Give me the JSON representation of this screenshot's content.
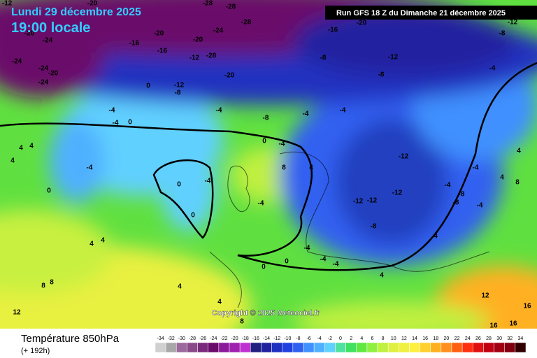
{
  "header": {
    "date": "Lundi 29 décembre 2025",
    "time": "19:00 locale",
    "run": "Run GFS 18 Z du Dimanche 21 décembre 2025"
  },
  "copyright": "Copyright © 2025 Meteociel.fr",
  "footer": {
    "title": "Température 850hPa",
    "lead": "(+ 192h)"
  },
  "colorbar": {
    "labels": [
      -34,
      -32,
      -30,
      -28,
      -26,
      -24,
      -22,
      -20,
      -18,
      -16,
      -14,
      -12,
      -10,
      -8,
      -6,
      -4,
      -2,
      0,
      2,
      4,
      6,
      8,
      10,
      12,
      14,
      16,
      18,
      20,
      22,
      24,
      26,
      28,
      30,
      32,
      34
    ],
    "colors": [
      "#d0d0d0",
      "#a8a8a8",
      "#9a6a9a",
      "#8a4a8a",
      "#7a2a7a",
      "#6a0a6a",
      "#8a1a9a",
      "#a020b0",
      "#c030d0",
      "#202080",
      "#2020a0",
      "#2030c0",
      "#2040e0",
      "#3060f0",
      "#4090ff",
      "#50b0ff",
      "#60d0ff",
      "#50e0a0",
      "#40e060",
      "#60e840",
      "#90f040",
      "#c0f040",
      "#e0f040",
      "#f0f040",
      "#fff040",
      "#ffd030",
      "#ffb020",
      "#ff9020",
      "#ff6010",
      "#ff3010",
      "#e01010",
      "#c00010",
      "#a00010",
      "#800010",
      "#300000"
    ]
  },
  "map_labels": [
    -12,
    -20,
    -28,
    -28,
    -28,
    -20,
    -24,
    -20,
    -16,
    -16,
    -12,
    -28,
    -20,
    -24,
    -24,
    -24,
    -20,
    -24,
    -20,
    -12,
    -8,
    -8,
    -12,
    -8,
    -16,
    -20,
    -12,
    -8,
    -4,
    -4,
    -4,
    0,
    0,
    -4,
    -8,
    -4,
    -4,
    0,
    -4,
    -12,
    -12,
    -12,
    -12,
    -8,
    -4,
    0,
    -4,
    0,
    0,
    4,
    4,
    4,
    8,
    4,
    -4,
    -4,
    -4,
    -4,
    -4,
    -4,
    0,
    0,
    4,
    4,
    4,
    8,
    8,
    12,
    4,
    8,
    12,
    16,
    16,
    16,
    4,
    8,
    4,
    -8,
    -4,
    -8,
    4,
    4
  ]
}
